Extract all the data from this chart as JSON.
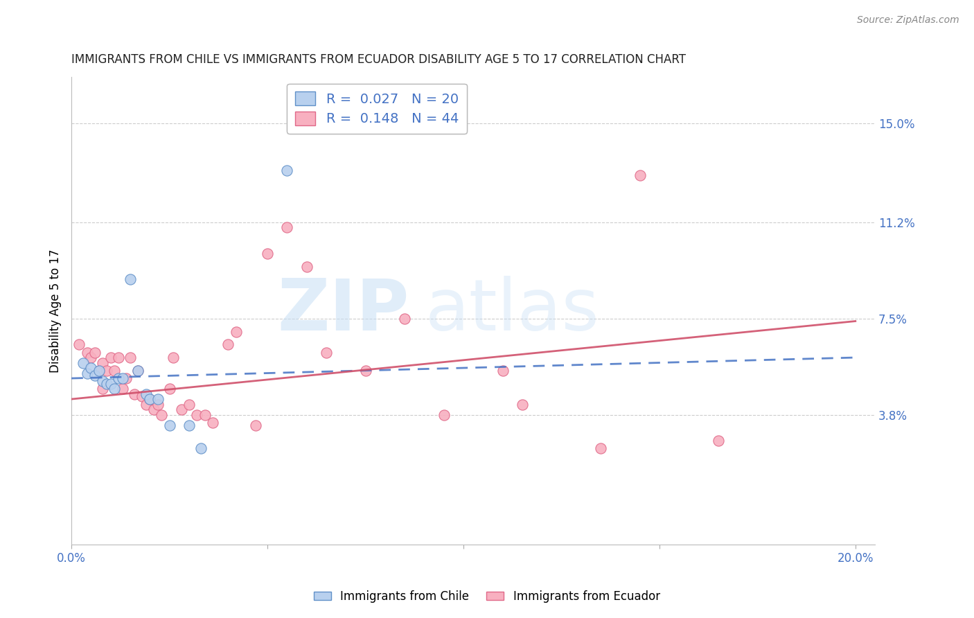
{
  "title": "IMMIGRANTS FROM CHILE VS IMMIGRANTS FROM ECUADOR DISABILITY AGE 5 TO 17 CORRELATION CHART",
  "source": "Source: ZipAtlas.com",
  "ylabel": "Disability Age 5 to 17",
  "xlim": [
    0.0,
    0.205
  ],
  "ylim": [
    -0.012,
    0.168
  ],
  "xtick_positions": [
    0.0,
    0.05,
    0.1,
    0.15,
    0.2
  ],
  "xtick_labels": [
    "0.0%",
    "",
    "",
    "",
    "20.0%"
  ],
  "ytick_values": [
    0.038,
    0.075,
    0.112,
    0.15
  ],
  "ytick_labels": [
    "3.8%",
    "7.5%",
    "11.2%",
    "15.0%"
  ],
  "watermark_zip": "ZIP",
  "watermark_atlas": "atlas",
  "legend_r_chile": "R =  0.027",
  "legend_n_chile": "N = 20",
  "legend_r_ecuador": "R =  0.148",
  "legend_n_ecuador": "N = 44",
  "chile_color": "#b8d0ee",
  "chile_edge_color": "#6090c8",
  "ecuador_color": "#f8b0c0",
  "ecuador_edge_color": "#e06888",
  "chile_line_color": "#4472c4",
  "ecuador_line_color": "#d0506a",
  "axis_label_color": "#4472c4",
  "title_color": "#222222",
  "source_color": "#888888",
  "grid_color": "#cccccc",
  "background_color": "#ffffff",
  "chile_scatter_x": [
    0.003,
    0.004,
    0.005,
    0.006,
    0.007,
    0.008,
    0.009,
    0.01,
    0.011,
    0.012,
    0.013,
    0.015,
    0.017,
    0.019,
    0.02,
    0.022,
    0.025,
    0.03,
    0.033,
    0.055
  ],
  "chile_scatter_y": [
    0.058,
    0.054,
    0.056,
    0.053,
    0.055,
    0.051,
    0.05,
    0.05,
    0.048,
    0.052,
    0.052,
    0.09,
    0.055,
    0.046,
    0.044,
    0.044,
    0.034,
    0.034,
    0.025,
    0.132
  ],
  "ecuador_scatter_x": [
    0.002,
    0.004,
    0.005,
    0.006,
    0.007,
    0.008,
    0.008,
    0.009,
    0.01,
    0.011,
    0.012,
    0.013,
    0.014,
    0.015,
    0.016,
    0.017,
    0.018,
    0.019,
    0.02,
    0.021,
    0.022,
    0.023,
    0.025,
    0.026,
    0.028,
    0.03,
    0.032,
    0.034,
    0.036,
    0.04,
    0.042,
    0.047,
    0.05,
    0.055,
    0.06,
    0.065,
    0.075,
    0.085,
    0.095,
    0.11,
    0.115,
    0.135,
    0.145,
    0.165
  ],
  "ecuador_scatter_y": [
    0.065,
    0.062,
    0.06,
    0.062,
    0.055,
    0.058,
    0.048,
    0.055,
    0.06,
    0.055,
    0.06,
    0.048,
    0.052,
    0.06,
    0.046,
    0.055,
    0.045,
    0.042,
    0.044,
    0.04,
    0.042,
    0.038,
    0.048,
    0.06,
    0.04,
    0.042,
    0.038,
    0.038,
    0.035,
    0.065,
    0.07,
    0.034,
    0.1,
    0.11,
    0.095,
    0.062,
    0.055,
    0.075,
    0.038,
    0.055,
    0.042,
    0.025,
    0.13,
    0.028
  ],
  "chile_trend_x": [
    0.0,
    0.2
  ],
  "chile_trend_y": [
    0.052,
    0.06
  ],
  "ecuador_trend_x": [
    0.0,
    0.2
  ],
  "ecuador_trend_y": [
    0.044,
    0.074
  ]
}
